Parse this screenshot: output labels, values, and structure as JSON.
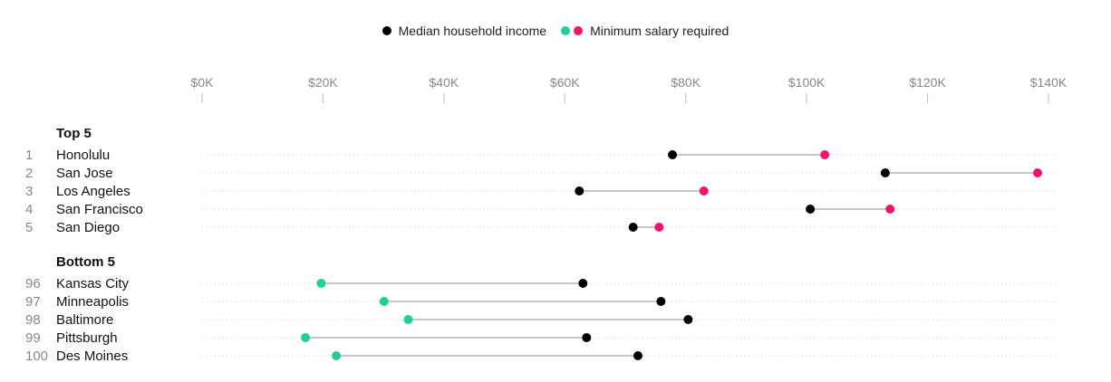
{
  "legend": {
    "median_label": "Median household income",
    "minimum_label": "Minimum salary required"
  },
  "colors": {
    "median": "#000000",
    "minimum_low": "#1ecf97",
    "minimum_high": "#f0146e",
    "connector": "#c8c8c8",
    "gridline": "#d8d8d8"
  },
  "chart_data": {
    "type": "dot-plot",
    "xlim": [
      0,
      140000
    ],
    "x_ticks": [
      {
        "value": 0,
        "label": "$0K"
      },
      {
        "value": 20000,
        "label": "$20K"
      },
      {
        "value": 40000,
        "label": "$40K"
      },
      {
        "value": 60000,
        "label": "$60K"
      },
      {
        "value": 80000,
        "label": "$80K"
      },
      {
        "value": 100000,
        "label": "$100K"
      },
      {
        "value": 120000,
        "label": "$120K"
      },
      {
        "value": 140000,
        "label": "$140K"
      }
    ],
    "series": [
      {
        "name": "Median household income"
      },
      {
        "name": "Minimum salary required"
      }
    ],
    "groups": [
      {
        "title": "Top 5",
        "rows": [
          {
            "rank": "1",
            "city": "Honolulu",
            "median": 77800,
            "minimum": 103000
          },
          {
            "rank": "2",
            "city": "San Jose",
            "median": 113000,
            "minimum": 138200
          },
          {
            "rank": "3",
            "city": "Los Angeles",
            "median": 62400,
            "minimum": 83000
          },
          {
            "rank": "4",
            "city": "San Francisco",
            "median": 100600,
            "minimum": 113800
          },
          {
            "rank": "5",
            "city": "San Diego",
            "median": 71300,
            "minimum": 75600
          }
        ]
      },
      {
        "title": "Bottom 5",
        "rows": [
          {
            "rank": "96",
            "city": "Kansas City",
            "median": 63000,
            "minimum": 19700
          },
          {
            "rank": "97",
            "city": "Minneapolis",
            "median": 75900,
            "minimum": 30100
          },
          {
            "rank": "98",
            "city": "Baltimore",
            "median": 80400,
            "minimum": 34100
          },
          {
            "rank": "99",
            "city": "Pittsburgh",
            "median": 63600,
            "minimum": 17100
          },
          {
            "rank": "100",
            "city": "Des Moines",
            "median": 72100,
            "minimum": 22200
          }
        ]
      }
    ]
  }
}
